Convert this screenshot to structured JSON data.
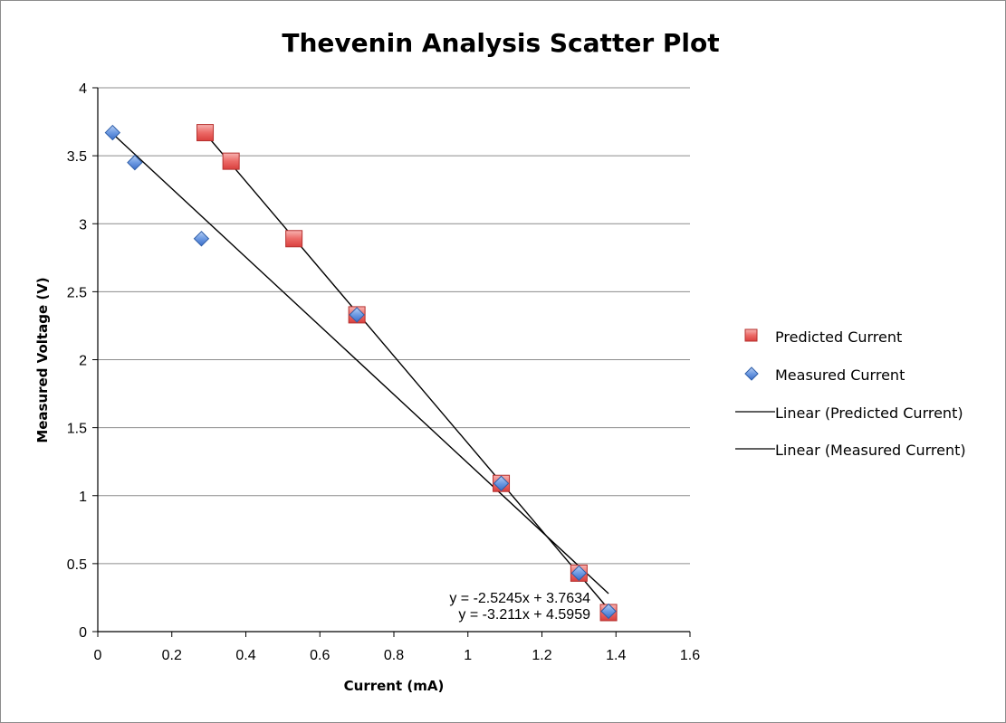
{
  "chart_data": {
    "type": "scatter",
    "title": "Thevenin Analysis Scatter Plot",
    "xlabel": "Current (mA)",
    "ylabel": "Measured Voltage (V)",
    "xlim": [
      0,
      1.6
    ],
    "ylim": [
      0,
      4
    ],
    "x_ticks": [
      "0",
      "0.2",
      "0.4",
      "0.6",
      "0.8",
      "1",
      "1.2",
      "1.4",
      "1.6"
    ],
    "y_ticks": [
      "0",
      "0.5",
      "1",
      "1.5",
      "2",
      "2.5",
      "3",
      "3.5",
      "4"
    ],
    "grid": "horizontal",
    "legend_position": "right",
    "series": [
      {
        "name": "Predicted Current",
        "marker": "square",
        "color": "#e8504f",
        "points": [
          {
            "x": 0.29,
            "y": 3.67
          },
          {
            "x": 0.36,
            "y": 3.46
          },
          {
            "x": 0.53,
            "y": 2.89
          },
          {
            "x": 0.7,
            "y": 2.33
          },
          {
            "x": 1.09,
            "y": 1.09
          },
          {
            "x": 1.3,
            "y": 0.43
          },
          {
            "x": 1.38,
            "y": 0.14
          }
        ]
      },
      {
        "name": "Measured Current",
        "marker": "diamond",
        "color": "#4f81d8",
        "points": [
          {
            "x": 0.04,
            "y": 3.67
          },
          {
            "x": 0.1,
            "y": 3.45
          },
          {
            "x": 0.28,
            "y": 2.89
          },
          {
            "x": 0.7,
            "y": 2.33
          },
          {
            "x": 1.09,
            "y": 1.09
          },
          {
            "x": 1.3,
            "y": 0.43
          },
          {
            "x": 1.38,
            "y": 0.15
          }
        ]
      }
    ],
    "trendlines": [
      {
        "name": "Linear (Predicted Current)",
        "slope": -3.211,
        "intercept": 4.5959,
        "x_range": [
          0.29,
          1.38
        ],
        "equation": "y = -3.211x + 4.5959"
      },
      {
        "name": "Linear (Measured Current)",
        "slope": -2.5245,
        "intercept": 3.7634,
        "x_range": [
          0.04,
          1.38
        ],
        "equation": "y = -2.5245x + 3.7634"
      }
    ]
  }
}
